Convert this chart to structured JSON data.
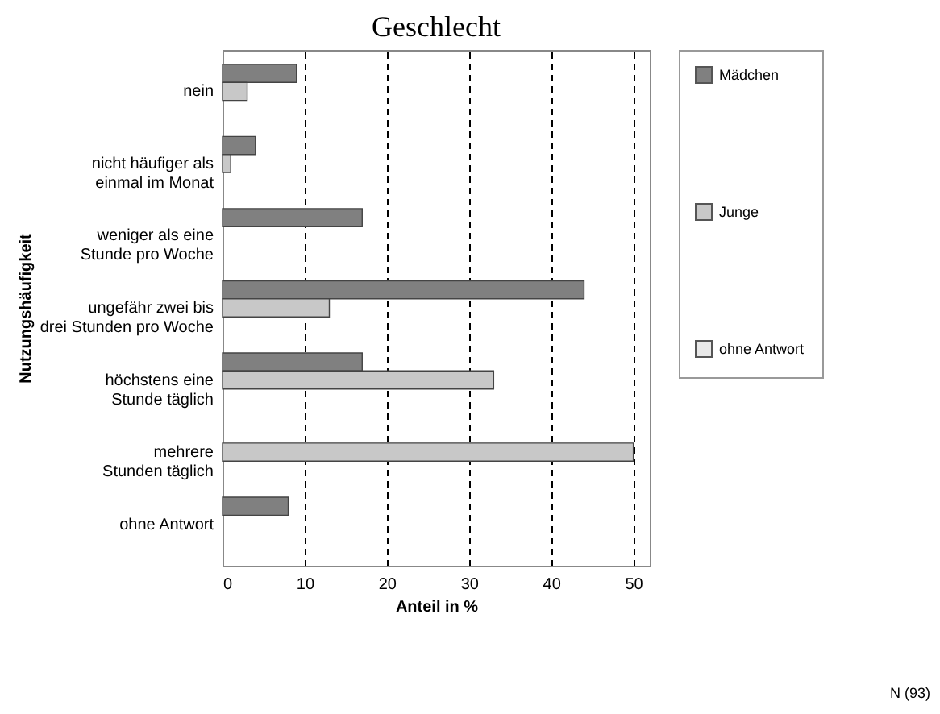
{
  "chart_data": {
    "type": "bar",
    "orientation": "horizontal",
    "title": "Geschlecht",
    "xlabel": "Anteil in %",
    "ylabel": "Nutzungshäufigkeit",
    "categories": [
      "nein",
      "nicht häufiger als einmal im Monat",
      "weniger als eine Stunde pro Woche",
      "ungefähr zwei bis drei Stunden pro Woche",
      "höchstens eine Stunde täglich",
      "mehrere Stunden täglich",
      "ohne Antwort"
    ],
    "series": [
      {
        "name": "Mädchen",
        "color": "#808080",
        "values": [
          9,
          4,
          17,
          44,
          17,
          0,
          8
        ]
      },
      {
        "name": "Junge",
        "color": "#c8c8c8",
        "values": [
          3,
          1,
          0,
          13,
          33,
          50,
          0
        ]
      },
      {
        "name": "ohne Antwort",
        "color": "#e8e8e8",
        "values": [
          0,
          0,
          0,
          0,
          0,
          0,
          0
        ]
      }
    ],
    "xlim": [
      0,
      52
    ],
    "xticks": [
      0,
      10,
      20,
      30,
      40,
      50
    ],
    "grid": "x",
    "legend": "right",
    "annotations": [
      "N (93)"
    ]
  }
}
